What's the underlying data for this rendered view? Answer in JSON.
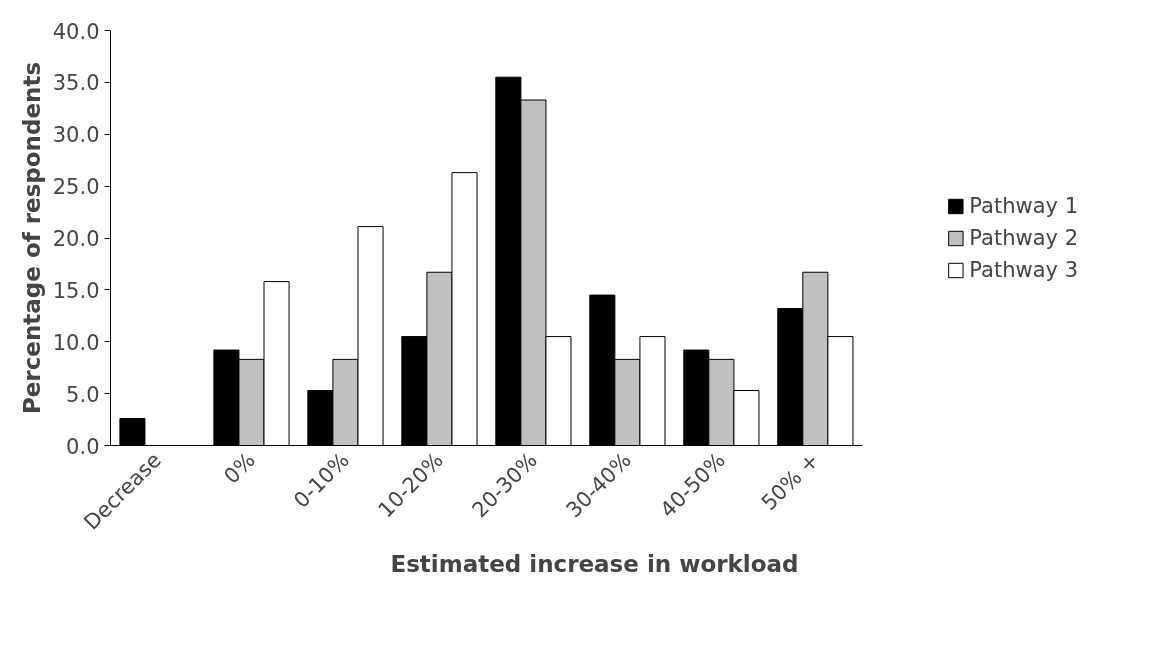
{
  "chart_data": {
    "type": "bar",
    "xlabel": "Estimated increase in workload",
    "ylabel": "Percentage of respondents",
    "categories": [
      "Decrease",
      "0%",
      "0-10%",
      "10-20%",
      "20-30%",
      "30-40%",
      "40-50%",
      "50% +"
    ],
    "series": [
      {
        "name": "Pathway 1",
        "color": "#000000",
        "values": [
          2.6,
          9.2,
          5.3,
          10.5,
          35.5,
          14.5,
          9.2,
          13.2
        ]
      },
      {
        "name": "Pathway 2",
        "color": "#c0c0c0",
        "values": [
          null,
          8.3,
          8.3,
          16.7,
          33.3,
          8.3,
          8.3,
          16.7
        ]
      },
      {
        "name": "Pathway 3",
        "color": "#ffffff",
        "values": [
          null,
          15.8,
          21.1,
          26.3,
          10.5,
          10.5,
          5.3,
          10.5
        ]
      }
    ],
    "ylim": [
      0,
      40
    ],
    "yticks": [
      {
        "value": 0,
        "label": "0.0"
      },
      {
        "value": 5,
        "label": "5.0"
      },
      {
        "value": 10,
        "label": "10.0"
      },
      {
        "value": 15,
        "label": "15.0"
      },
      {
        "value": 20,
        "label": "20.0"
      },
      {
        "value": 25,
        "label": "25.0"
      },
      {
        "value": 30,
        "label": "30.0"
      },
      {
        "value": 35,
        "label": "35.0"
      },
      {
        "value": 40,
        "label": "40.0"
      }
    ],
    "grid": false,
    "legend": "right"
  }
}
